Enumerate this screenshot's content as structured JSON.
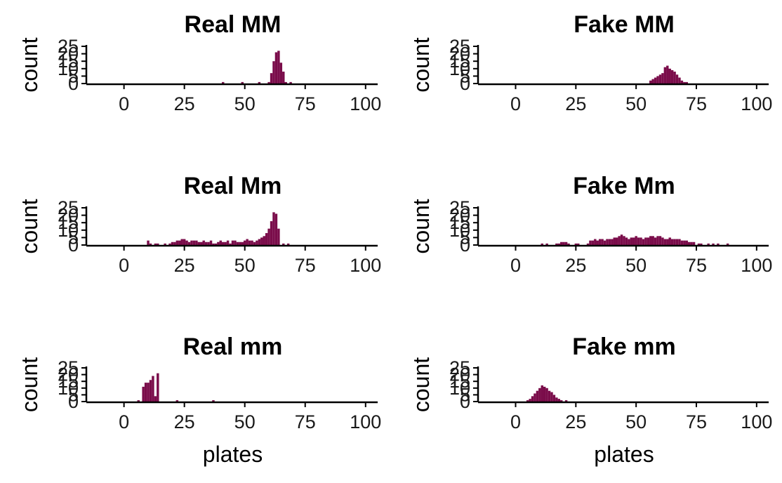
{
  "figure": {
    "fill_color": "#7A0C4A",
    "axis_color": "#000000",
    "panels_layout": "3 rows x 2 columns, independent axes"
  },
  "chart_data": [
    {
      "type": "bar",
      "title": "Real MM",
      "xlabel": "",
      "ylabel": "count",
      "xlim": [
        -15,
        105
      ],
      "ylim": [
        0,
        25
      ],
      "xticks": [
        "0",
        "25",
        "50",
        "75",
        "100"
      ],
      "yticks": [
        "0",
        "5",
        "10",
        "15",
        "20",
        "25"
      ],
      "bin_width": 1,
      "x": [
        41,
        49,
        56,
        60,
        61,
        62,
        63,
        64,
        65,
        66,
        67,
        69
      ],
      "values": [
        1,
        1,
        1,
        1,
        7,
        15,
        21,
        22,
        14,
        8,
        1,
        1
      ]
    },
    {
      "type": "bar",
      "title": "Fake MM",
      "xlabel": "",
      "ylabel": "count",
      "xlim": [
        -15,
        105
      ],
      "ylim": [
        0,
        25
      ],
      "xticks": [
        "0",
        "25",
        "50",
        "75",
        "100"
      ],
      "yticks": [
        "0",
        "5",
        "10",
        "15",
        "20",
        "25"
      ],
      "bin_width": 1,
      "x": [
        56,
        57,
        58,
        59,
        60,
        61,
        62,
        63,
        64,
        65,
        66,
        67,
        68,
        69,
        70,
        71
      ],
      "values": [
        2,
        3,
        4,
        5,
        6,
        7,
        11,
        12,
        10,
        9,
        8,
        6,
        4,
        2,
        1,
        1
      ]
    },
    {
      "type": "bar",
      "title": "Real Mm",
      "xlabel": "",
      "ylabel": "count",
      "xlim": [
        -15,
        105
      ],
      "ylim": [
        0,
        25
      ],
      "xticks": [
        "0",
        "25",
        "50",
        "75",
        "100"
      ],
      "yticks": [
        "0",
        "5",
        "10",
        "15",
        "20",
        "25"
      ],
      "bin_width": 1,
      "x": [
        10,
        11,
        13,
        14,
        17,
        19,
        20,
        21,
        22,
        23,
        24,
        25,
        26,
        27,
        28,
        29,
        30,
        31,
        32,
        33,
        34,
        35,
        36,
        37,
        38,
        39,
        40,
        41,
        42,
        43,
        44,
        45,
        46,
        47,
        48,
        49,
        50,
        51,
        52,
        53,
        54,
        55,
        56,
        57,
        58,
        59,
        60,
        61,
        62,
        63,
        64,
        66,
        68
      ],
      "values": [
        3,
        1,
        1,
        1,
        1,
        1,
        2,
        2,
        3,
        3,
        4,
        4,
        3,
        2,
        3,
        3,
        3,
        2,
        2,
        3,
        2,
        2,
        3,
        1,
        1,
        2,
        3,
        2,
        2,
        3,
        1,
        3,
        3,
        2,
        2,
        2,
        3,
        4,
        3,
        3,
        2,
        3,
        4,
        5,
        6,
        8,
        11,
        16,
        22,
        21,
        11,
        1,
        1
      ]
    },
    {
      "type": "bar",
      "title": "Fake Mm",
      "xlabel": "",
      "ylabel": "count",
      "xlim": [
        -15,
        105
      ],
      "ylim": [
        0,
        25
      ],
      "xticks": [
        "0",
        "25",
        "50",
        "75",
        "100"
      ],
      "yticks": [
        "0",
        "5",
        "10",
        "15",
        "20",
        "25"
      ],
      "bin_width": 1,
      "x": [
        11,
        13,
        17,
        18,
        19,
        20,
        21,
        22,
        25,
        26,
        30,
        31,
        32,
        33,
        34,
        35,
        36,
        37,
        38,
        39,
        40,
        41,
        42,
        43,
        44,
        45,
        46,
        47,
        48,
        49,
        50,
        51,
        52,
        53,
        54,
        55,
        56,
        57,
        58,
        59,
        60,
        61,
        62,
        63,
        64,
        65,
        66,
        67,
        68,
        69,
        70,
        71,
        72,
        73,
        74,
        76,
        77,
        80,
        82,
        84,
        88
      ],
      "values": [
        1,
        1,
        1,
        1,
        2,
        2,
        2,
        1,
        1,
        1,
        1,
        3,
        3,
        4,
        3,
        4,
        4,
        3,
        4,
        4,
        4,
        5,
        5,
        6,
        7,
        6,
        5,
        4,
        5,
        5,
        6,
        5,
        5,
        4,
        5,
        5,
        6,
        6,
        5,
        6,
        6,
        5,
        4,
        4,
        5,
        4,
        4,
        4,
        4,
        3,
        3,
        3,
        2,
        2,
        2,
        1,
        1,
        1,
        1,
        1,
        1
      ]
    },
    {
      "type": "bar",
      "title": "Real mm",
      "xlabel": "plates",
      "ylabel": "count",
      "xlim": [
        -15,
        105
      ],
      "ylim": [
        0,
        25
      ],
      "xticks": [
        "0",
        "25",
        "50",
        "75",
        "100"
      ],
      "yticks": [
        "0",
        "5",
        "10",
        "15",
        "20",
        "25"
      ],
      "bin_width": 1,
      "x": [
        6,
        8,
        9,
        10,
        11,
        12,
        13,
        14,
        22,
        37
      ],
      "values": [
        1,
        11,
        14,
        14,
        16,
        19,
        4,
        21,
        1,
        1
      ]
    },
    {
      "type": "bar",
      "title": "Fake mm",
      "xlabel": "plates",
      "ylabel": "count",
      "xlim": [
        -15,
        105
      ],
      "ylim": [
        0,
        25
      ],
      "xticks": [
        "0",
        "25",
        "50",
        "75",
        "100"
      ],
      "yticks": [
        "0",
        "5",
        "10",
        "15",
        "20",
        "25"
      ],
      "bin_width": 1,
      "x": [
        5,
        6,
        7,
        8,
        9,
        10,
        11,
        12,
        13,
        14,
        15,
        16,
        17,
        18,
        19,
        21
      ],
      "values": [
        1,
        2,
        4,
        6,
        8,
        10,
        12,
        11,
        10,
        8,
        7,
        5,
        3,
        2,
        1,
        1
      ]
    }
  ]
}
